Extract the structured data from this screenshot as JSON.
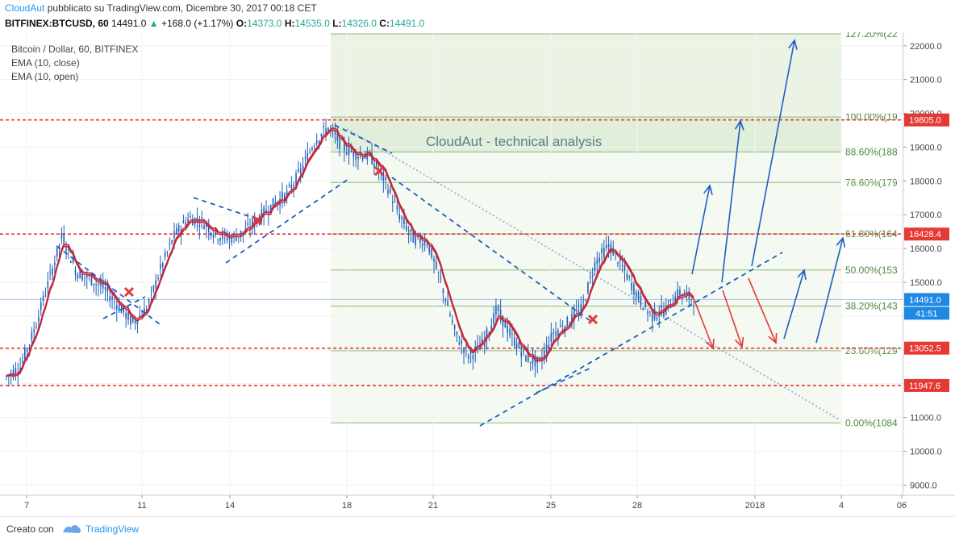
{
  "header": {
    "author": "CloudAut",
    "published": "pubblicato su TradingView.com, Dicembre 30, 2017 00:18 CET",
    "symbol": "BITFINEX:BTCUSD, 60",
    "last": "14491.0",
    "change": "+168.0 (+1.17%)",
    "o_label": "O:",
    "o_value": "14373.0",
    "h_label": "H:",
    "h_value": "14535.0",
    "l_label": "L:",
    "l_value": "14326.0",
    "c_label": "C:",
    "c_value": "14491.0"
  },
  "legend": {
    "title": "Bitcoin / Dollar, 60, BITFINEX",
    "ema1": "EMA (10, close)",
    "ema2": "EMA (10, open)"
  },
  "annotation": "CloudAut - technical analysis",
  "footer": {
    "made_with": "Creato con",
    "brand": "TradingView"
  },
  "colors": {
    "ema": "#c0283a",
    "trendline": "#1e5fbf",
    "level": "#e53935",
    "fib_zone": "#e8f1e2",
    "fib_text": "#4a8a3a",
    "candle": "#1e5fbf",
    "price_tag": "#1e88e5",
    "level_tag": "#e53935"
  },
  "chart_data": {
    "type": "candlestick",
    "symbol": "BTCUSD",
    "interval": "60",
    "ylim": [
      8700,
      22400
    ],
    "y_ticks": [
      "9000.0",
      "10000.0",
      "11000.0",
      "12000.0",
      "13000.0",
      "14000.0",
      "15000.0",
      "16000.0",
      "17000.0",
      "18000.0",
      "19000.0",
      "20000.0",
      "21000.0",
      "22000.0"
    ],
    "x_ticks": [
      "7",
      "11",
      "14",
      "18",
      "21",
      "25",
      "28",
      "2018",
      "4",
      "06"
    ],
    "price_path": [
      [
        0,
        12200
      ],
      [
        1,
        12500
      ],
      [
        2,
        13600
      ],
      [
        3,
        15000
      ],
      [
        4,
        16400
      ],
      [
        5,
        15300
      ],
      [
        6,
        15100
      ],
      [
        7,
        14800
      ],
      [
        8,
        14300
      ],
      [
        9,
        13800
      ],
      [
        10,
        14200
      ],
      [
        11,
        15400
      ],
      [
        12,
        16400
      ],
      [
        13,
        16900
      ],
      [
        14,
        16800
      ],
      [
        15,
        16400
      ],
      [
        16,
        16300
      ],
      [
        17,
        16500
      ],
      [
        18,
        16900
      ],
      [
        19,
        17300
      ],
      [
        20,
        17600
      ],
      [
        21,
        18300
      ],
      [
        22,
        19200
      ],
      [
        23,
        19600
      ],
      [
        24,
        19000
      ],
      [
        25,
        18800
      ],
      [
        26,
        18700
      ],
      [
        27,
        18000
      ],
      [
        28,
        17000
      ],
      [
        29,
        16300
      ],
      [
        30,
        16200
      ],
      [
        31,
        15000
      ],
      [
        32,
        13500
      ],
      [
        33,
        12800
      ],
      [
        34,
        13200
      ],
      [
        35,
        14200
      ],
      [
        36,
        13400
      ],
      [
        37,
        12800
      ],
      [
        38,
        12600
      ],
      [
        39,
        13500
      ],
      [
        40,
        13800
      ],
      [
        41,
        14200
      ],
      [
        42,
        15600
      ],
      [
        43,
        16100
      ],
      [
        44,
        15400
      ],
      [
        45,
        14600
      ],
      [
        46,
        14000
      ],
      [
        47,
        14200
      ],
      [
        48,
        14700
      ],
      [
        49,
        14491
      ]
    ],
    "levels": [
      {
        "value": 19805.0,
        "label": "19805.0"
      },
      {
        "value": 16428.4,
        "label": "16428.4"
      },
      {
        "value": 13052.5,
        "label": "13052.5"
      },
      {
        "value": 11947.6,
        "label": "11947.6"
      }
    ],
    "last_price": {
      "value": 14491.0,
      "label": "14491.0",
      "countdown": "41:51"
    },
    "fibonacci": [
      {
        "label": "127.20%(22"
      },
      {
        "label": "100.00%(19"
      },
      {
        "label": "88.60%(188"
      },
      {
        "label": "78.60%(179"
      },
      {
        "label": "61.80%(164"
      },
      {
        "label": "50.00%(153"
      },
      {
        "label": "38.20%(143"
      },
      {
        "label": "23.60%(129"
      },
      {
        "label": "0.00%(1084"
      }
    ],
    "fib_ratios": [
      1.272,
      1.0,
      0.886,
      0.786,
      0.618,
      0.5,
      0.382,
      0.236,
      0.0
    ],
    "fib_low": 10840,
    "fib_high": 19890,
    "ema_series": [
      "EMA (10, close)",
      "EMA (10, open)"
    ]
  }
}
